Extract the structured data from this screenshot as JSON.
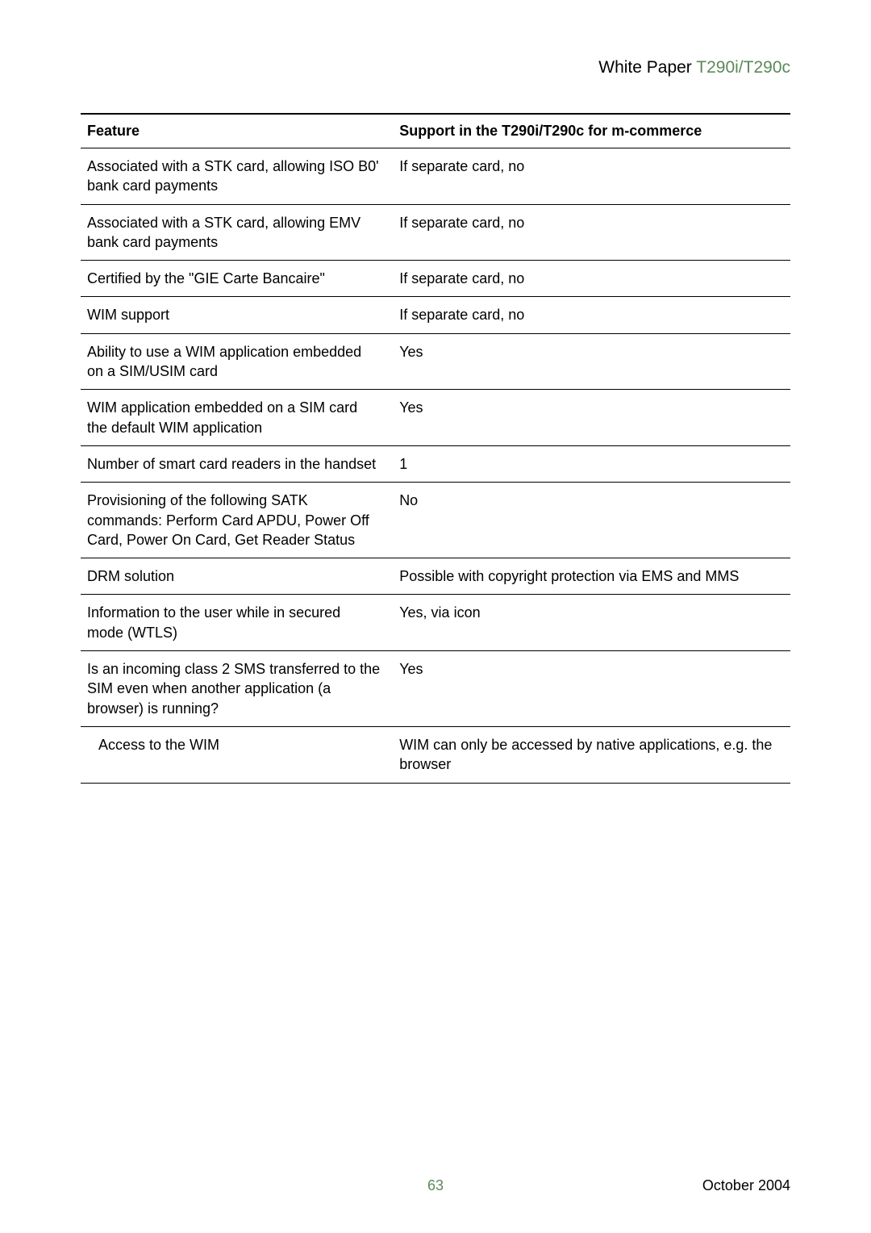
{
  "header": {
    "prefix": "White Paper ",
    "model": "T290i/T290c"
  },
  "table": {
    "columns": [
      "Feature",
      "Support in the T290i/T290c for m-commerce"
    ],
    "rows": [
      {
        "feature": "Associated with a STK card, allowing ISO B0' bank card payments",
        "support": "If separate card, no",
        "indent": false
      },
      {
        "feature": "Associated with a STK card, allowing EMV bank card payments",
        "support": "If separate card, no",
        "indent": false
      },
      {
        "feature": "Certified by the \"GIE Carte Bancaire\"",
        "support": "If separate card, no",
        "indent": false
      },
      {
        "feature": "WIM support",
        "support": "If separate card, no",
        "indent": false
      },
      {
        "feature": "Ability to use a WIM application embedded on a SIM/USIM card",
        "support": "Yes",
        "indent": false
      },
      {
        "feature": "WIM application embedded on a SIM card the default WIM application",
        "support": "Yes",
        "indent": false
      },
      {
        "feature": "Number of smart card readers in the handset",
        "support": "1",
        "indent": false
      },
      {
        "feature": "Provisioning of the following SATK commands: Perform Card APDU, Power Off Card, Power On Card, Get Reader Status",
        "support": "No",
        "indent": false
      },
      {
        "feature": "DRM solution",
        "support": "Possible with copyright protection via EMS and MMS",
        "indent": false
      },
      {
        "feature": "Information to the user while in secured mode (WTLS)",
        "support": "Yes, via icon",
        "indent": false
      },
      {
        "feature": "Is an incoming class 2 SMS transferred to the SIM even when another application (a browser) is running?",
        "support": "Yes",
        "indent": false
      },
      {
        "feature": "Access to the WIM",
        "support": "WIM can only be accessed by native applications, e.g. the browser",
        "indent": true
      }
    ]
  },
  "footer": {
    "page_number": "63",
    "date": "October 2004"
  },
  "colors": {
    "accent": "#5a8a5a",
    "text": "#000000",
    "rule": "#000000"
  }
}
